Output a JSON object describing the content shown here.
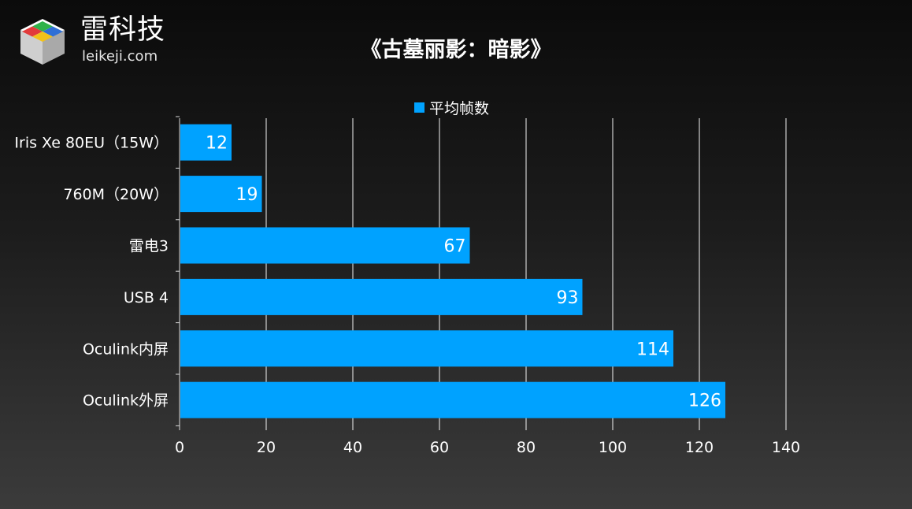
{
  "brand": {
    "name_cn": "雷科技",
    "domain": "leikeji.com",
    "logo_icon": "cube-logo-icon"
  },
  "chart_data": {
    "type": "bar",
    "orientation": "horizontal",
    "title": "《古墓丽影：暗影》",
    "categories": [
      "Iris Xe 80EU（15W）",
      "760M（20W）",
      "雷电3",
      "USB 4",
      "Oculink内屏",
      "Oculink外屏"
    ],
    "series": [
      {
        "name": "平均帧数",
        "values": [
          12,
          19,
          67,
          93,
          114,
          126
        ],
        "color": "#00a2ff"
      }
    ],
    "xlim": [
      0,
      140
    ],
    "xticks": [
      0,
      20,
      40,
      60,
      80,
      100,
      120,
      140
    ],
    "grid": true,
    "legend_position": "top",
    "data_labels": true
  }
}
